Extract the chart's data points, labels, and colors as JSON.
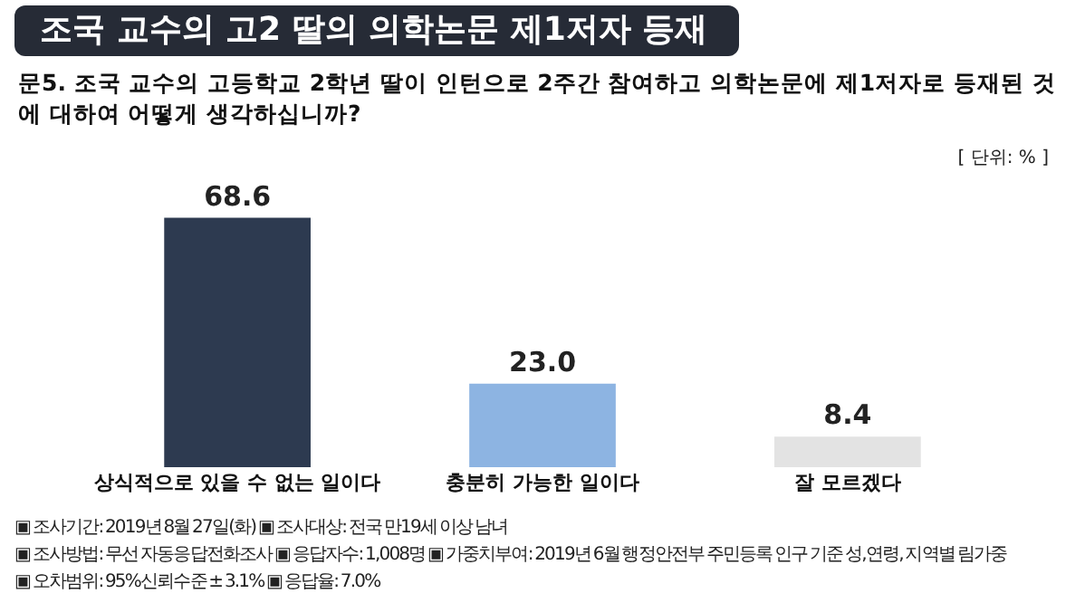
{
  "chart_data": {
    "type": "bar",
    "title": "조국 교수의 고2 딸의 의학논문 제1저자 등재",
    "subtitle": "문5. 조국 교수의 고등학교 2학년 딸이 인턴으로 2주간 참여하고 의학논문에 제1저자로 등재된 것에 대하여 어떻게 생각하십니까?",
    "annotations": [
      "[ 단위: % ]",
      "▣ 조사기간: 2019년 8월 27일(화) ▣ 조사대상: 전국 만19세 이상 남녀",
      "▣ 조사방법: 무선 자동응답전화조사 ▣ 응답자수: 1,008명 ▣ 가중치부여: 2019년 6월 행정안전부 주민등록 인구 기준 성,연령, 지역별 림가중",
      "▣ 오차범위: 95%신뢰수준 ± 3.1% ▣ 응답율: 7.0%"
    ],
    "categories": [
      "상식적으로 있을 수 없는 일이다",
      "충분히 가능한 일이다",
      "잘 모르겠다"
    ],
    "values": [
      68.6,
      23.0,
      8.4
    ],
    "colors": [
      "#2d3a50",
      "#8db4e2",
      "#e3e3e3"
    ],
    "data_labels": true,
    "value_labels": [
      "68.6",
      "23.0",
      "8.4"
    ],
    "tick_labels": "x",
    "grid": false,
    "legend": false
  }
}
